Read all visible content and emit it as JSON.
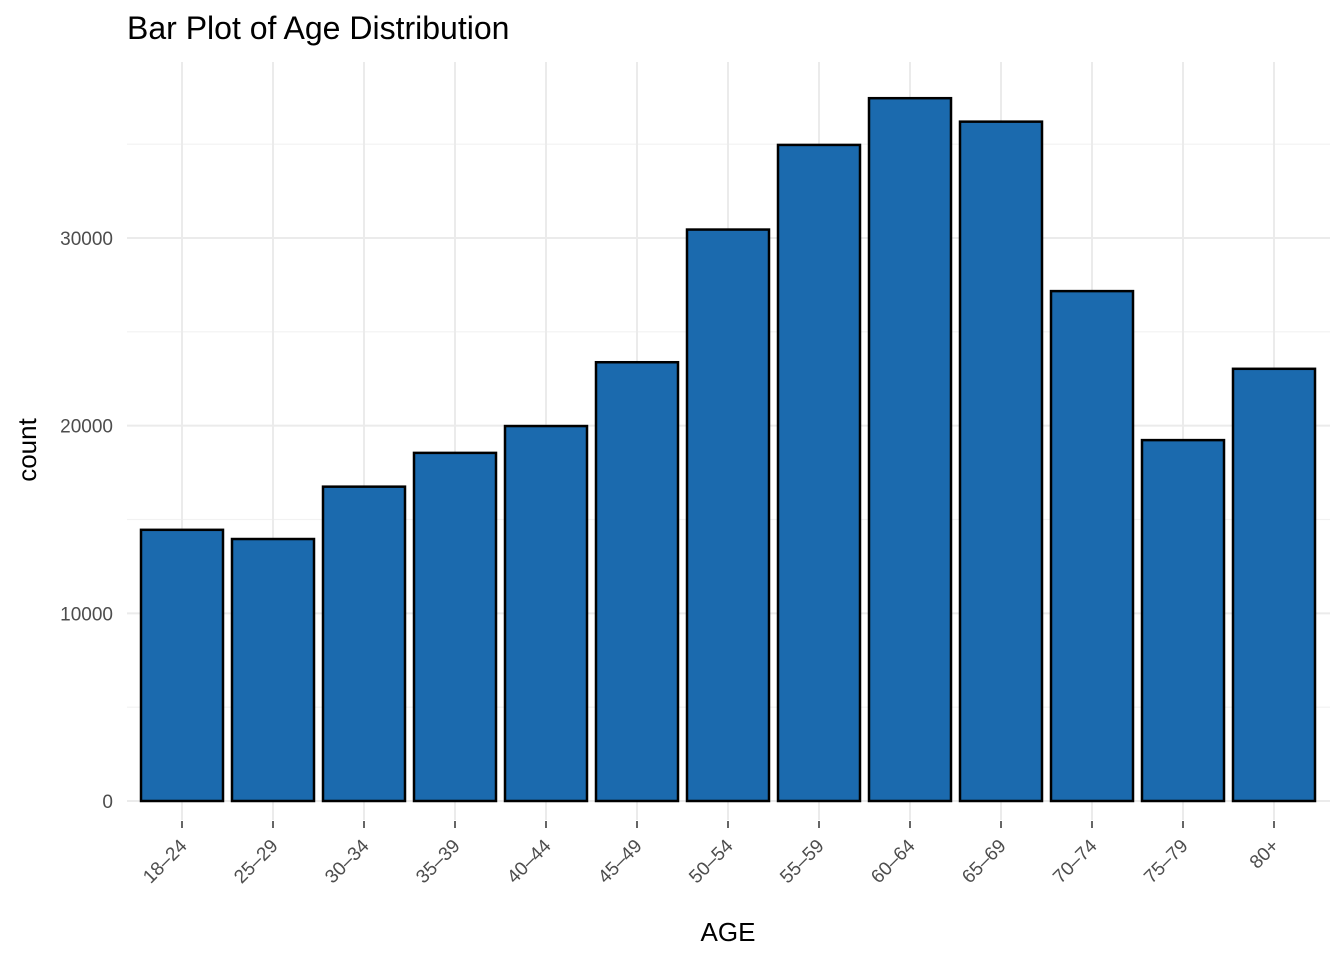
{
  "chart_data": {
    "type": "bar",
    "title": "Bar Plot of Age Distribution",
    "xlabel": "AGE",
    "ylabel": "count",
    "categories": [
      "18–24",
      "25–29",
      "30–34",
      "35–39",
      "40–44",
      "45–49",
      "50–54",
      "55–59",
      "60–64",
      "65–69",
      "70–74",
      "75–79",
      "80+"
    ],
    "values": [
      14450,
      13960,
      16750,
      18550,
      19980,
      23380,
      30450,
      34960,
      37450,
      36200,
      27170,
      19230,
      23030
    ],
    "ylim": [
      0,
      39000
    ],
    "yticks": [
      0,
      10000,
      20000,
      30000
    ],
    "ytick_labels": [
      "0",
      "10000",
      "20000",
      "30000"
    ],
    "minor_yticks": [
      5000,
      15000,
      25000,
      35000
    ],
    "grid": true,
    "legend": "none",
    "bar_fill": "#1b6aae",
    "bar_outline": "#000000"
  }
}
